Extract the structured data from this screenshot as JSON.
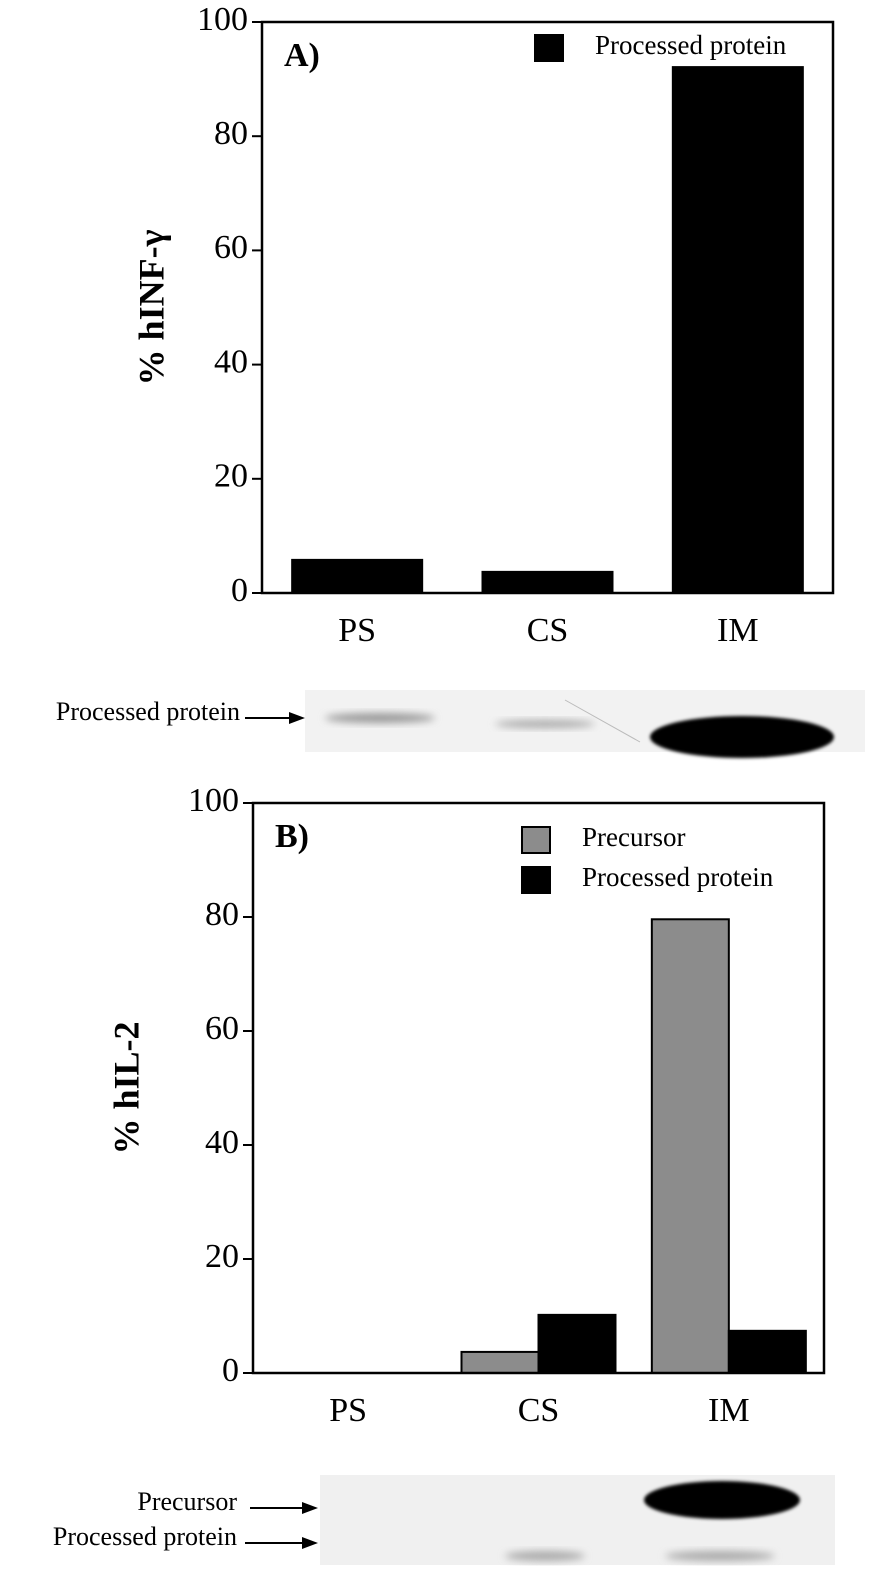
{
  "chart_data": [
    {
      "type": "bar",
      "panel_label": "A)",
      "y_label": "% hINF-γ",
      "categories": [
        "PS",
        "CS",
        "IM"
      ],
      "series": [
        {
          "name": "Processed protein",
          "color": "#000000",
          "values": [
            5.8,
            3.7,
            92.1
          ]
        }
      ],
      "ylim": [
        0,
        100
      ],
      "yticks": [
        0,
        20,
        40,
        60,
        80,
        100
      ],
      "legend": "upper right",
      "gel_labels": [
        "Processed protein"
      ]
    },
    {
      "type": "bar",
      "panel_label": "B)",
      "y_label": "% hIL-2",
      "categories": [
        "PS",
        "CS",
        "IM"
      ],
      "series": [
        {
          "name": "Precursor",
          "color": "#8c8c8c",
          "values": [
            0,
            3.7,
            79.6
          ]
        },
        {
          "name": "Processed protein",
          "color": "#000000",
          "values": [
            0,
            10.2,
            7.4
          ]
        }
      ],
      "ylim": [
        0,
        100
      ],
      "yticks": [
        0,
        20,
        40,
        60,
        80,
        100
      ],
      "legend": "upper right",
      "gel_labels": [
        "Precursor",
        "Processed protein"
      ]
    }
  ]
}
